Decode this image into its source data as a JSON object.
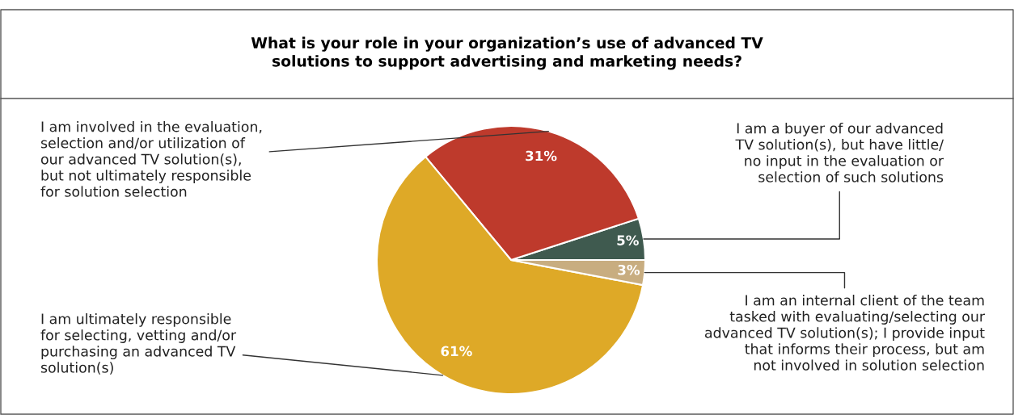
{
  "chart_data": {
    "type": "pie",
    "title": "What is your role in your organization’s use of advanced TV\nsolutions to support advertising and marketing needs?",
    "categories": [
      "I am a buyer of our advanced\nTV solution(s), but have little/\nno input in the evaluation or\nselection of such solutions",
      "I am involved in the evaluation,\nselection and/or utilization of\nour advanced TV solution(s),\nbut not ultimately responsible\nfor solution selection",
      "I am ultimately responsible\nfor selecting, vetting and/or\npurchasing an advanced TV\nsolution(s)",
      "I am an internal client of the team\ntasked with evaluating/selecting our\nadvanced TV solution(s); I provide input\nthat informs their process, but am\nnot involved in solution selection"
    ],
    "values": [
      5,
      31,
      61,
      3
    ],
    "value_labels": [
      "5%",
      "31%",
      "61%",
      "3%"
    ],
    "colors": [
      "#3f5a4f",
      "#be3a2c",
      "#dea927",
      "#c8ad80"
    ],
    "legend": false
  }
}
